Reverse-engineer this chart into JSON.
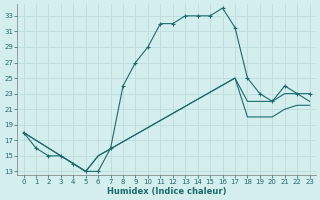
{
  "xlabel": "Humidex (Indice chaleur)",
  "bg_color": "#d4eeee",
  "line_color": "#1a6b6b",
  "grid_color": "#c0dede",
  "xlim": [
    -0.5,
    23.5
  ],
  "ylim": [
    12.5,
    34.5
  ],
  "xticks": [
    0,
    1,
    2,
    3,
    4,
    5,
    6,
    7,
    8,
    9,
    10,
    11,
    12,
    13,
    14,
    15,
    16,
    17,
    18,
    19,
    20,
    21,
    22,
    23
  ],
  "yticks": [
    13,
    15,
    17,
    19,
    21,
    23,
    25,
    27,
    29,
    31,
    33
  ],
  "line1_x": [
    0,
    1,
    2,
    3,
    4,
    5,
    6,
    7,
    8,
    9,
    10,
    11,
    12,
    13,
    14,
    15,
    16,
    17,
    18,
    19,
    20,
    21,
    22,
    23
  ],
  "line1_y": [
    18,
    16,
    15,
    15,
    14,
    13,
    13,
    16,
    24,
    27,
    29,
    32,
    32,
    33,
    33,
    33,
    34,
    31.5,
    25,
    23,
    22,
    24,
    23,
    23
  ],
  "line2_x": [
    0,
    5,
    6,
    17,
    18,
    19,
    20,
    21,
    22,
    23
  ],
  "line2_y": [
    18,
    13,
    15,
    25,
    22,
    22,
    22,
    23,
    23,
    22
  ],
  "line3_x": [
    0,
    5,
    6,
    17,
    18,
    19,
    20,
    21,
    22,
    23
  ],
  "line3_y": [
    18,
    13,
    15,
    25,
    20,
    20,
    20,
    21,
    21.5,
    21.5
  ]
}
